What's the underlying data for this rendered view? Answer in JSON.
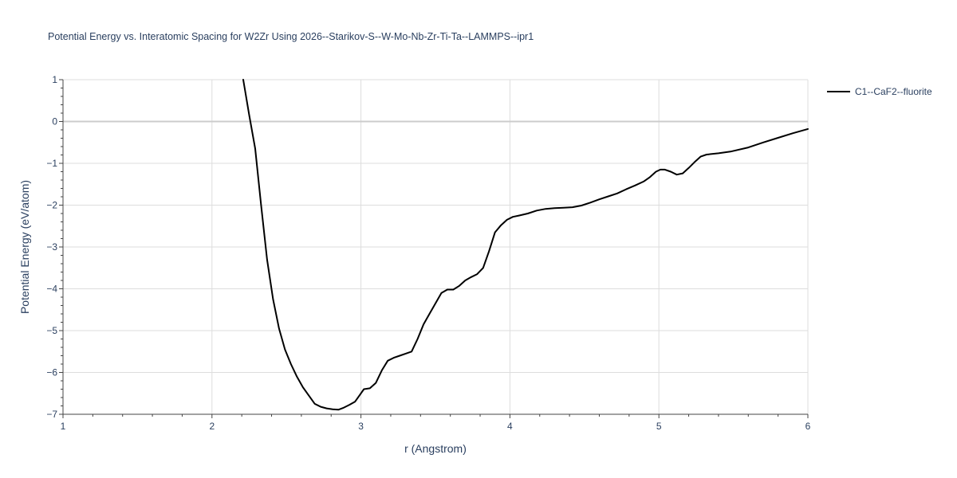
{
  "chart_data": {
    "type": "line",
    "title": "Potential Energy vs. Interatomic Spacing for W2Zr Using 2026--Starikov-S--W-Mo-Nb-Zr-Ti-Ta--LAMMPS--ipr1",
    "xlabel": "r (Angstrom)",
    "ylabel": "Potential Energy (eV/atom)",
    "xlim": [
      1,
      6
    ],
    "ylim": [
      -7,
      1
    ],
    "xticks": [
      1,
      2,
      3,
      4,
      5,
      6
    ],
    "xtick_labels": [
      "1",
      "2",
      "3",
      "4",
      "5",
      "6"
    ],
    "yticks": [
      1,
      0,
      -1,
      -2,
      -3,
      -4,
      -5,
      -6,
      -7
    ],
    "ytick_labels": [
      "1",
      "0",
      "−1",
      "−2",
      "−3",
      "−4",
      "−5",
      "−6",
      "−7"
    ],
    "grid": true,
    "legend_position": "top-right outside",
    "series": [
      {
        "name": "C1--CaF2--fluorite",
        "color": "#000000",
        "x": [
          2.21,
          2.25,
          2.29,
          2.33,
          2.37,
          2.41,
          2.45,
          2.49,
          2.53,
          2.57,
          2.61,
          2.65,
          2.69,
          2.73,
          2.77,
          2.81,
          2.85,
          2.88,
          2.92,
          2.96,
          2.99,
          3.02,
          3.06,
          3.1,
          3.14,
          3.18,
          3.22,
          3.26,
          3.3,
          3.34,
          3.38,
          3.42,
          3.46,
          3.5,
          3.54,
          3.58,
          3.62,
          3.66,
          3.7,
          3.74,
          3.78,
          3.82,
          3.86,
          3.9,
          3.94,
          3.98,
          4.02,
          4.06,
          4.12,
          4.18,
          4.24,
          4.3,
          4.36,
          4.42,
          4.48,
          4.54,
          4.6,
          4.66,
          4.72,
          4.78,
          4.84,
          4.9,
          4.94,
          4.98,
          5.01,
          5.04,
          5.08,
          5.12,
          5.16,
          5.2,
          5.24,
          5.28,
          5.32,
          5.4,
          5.48,
          5.6,
          5.7,
          5.8,
          5.9,
          6.0
        ],
        "y": [
          1.0,
          0.15,
          -0.65,
          -2.0,
          -3.3,
          -4.25,
          -4.95,
          -5.45,
          -5.8,
          -6.1,
          -6.35,
          -6.55,
          -6.75,
          -6.82,
          -6.86,
          -6.88,
          -6.89,
          -6.85,
          -6.78,
          -6.7,
          -6.55,
          -6.4,
          -6.38,
          -6.25,
          -5.95,
          -5.72,
          -5.65,
          -5.6,
          -5.55,
          -5.5,
          -5.2,
          -4.85,
          -4.6,
          -4.35,
          -4.1,
          -4.02,
          -4.02,
          -3.93,
          -3.8,
          -3.72,
          -3.65,
          -3.5,
          -3.1,
          -2.65,
          -2.48,
          -2.35,
          -2.28,
          -2.25,
          -2.2,
          -2.13,
          -2.09,
          -2.07,
          -2.06,
          -2.05,
          -2.01,
          -1.94,
          -1.86,
          -1.79,
          -1.72,
          -1.62,
          -1.53,
          -1.43,
          -1.33,
          -1.2,
          -1.15,
          -1.15,
          -1.2,
          -1.27,
          -1.24,
          -1.11,
          -0.97,
          -0.84,
          -0.79,
          -0.76,
          -0.72,
          -0.62,
          -0.5,
          -0.39,
          -0.28,
          -0.18
        ]
      }
    ]
  }
}
